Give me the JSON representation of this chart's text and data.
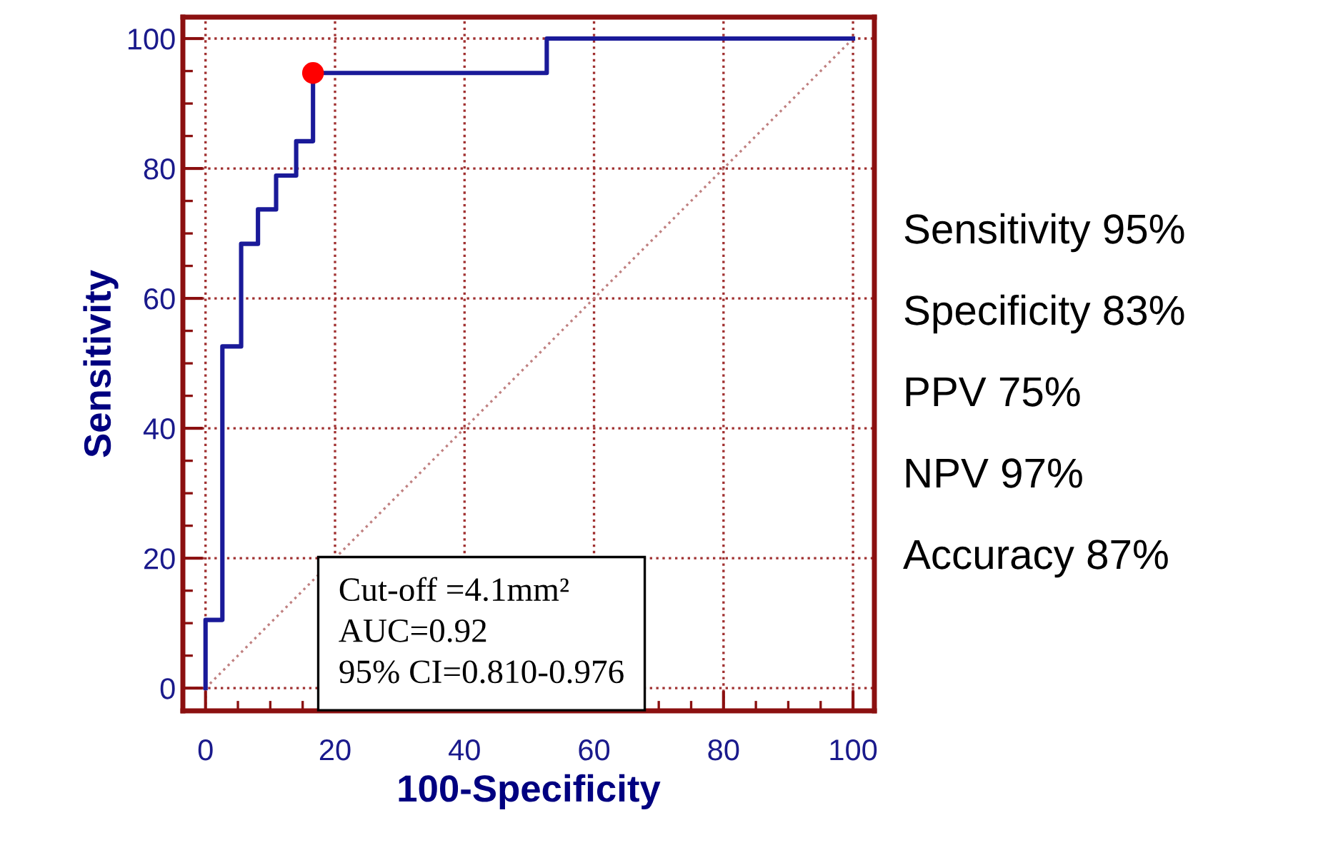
{
  "chart_data": {
    "type": "step",
    "xlabel": "100-Specificity",
    "ylabel": "Sensitivity",
    "xlim": [
      -3.5,
      103.3
    ],
    "ylim": [
      -3.5,
      103.3
    ],
    "xticks": [
      0,
      20,
      40,
      60,
      80,
      100
    ],
    "yticks": [
      0,
      20,
      40,
      60,
      80,
      100
    ],
    "grid": true,
    "legend": false,
    "series": [
      {
        "type": "line",
        "color": "#c08080",
        "line_style": "dotted",
        "x": [
          0,
          100
        ],
        "values": [
          0,
          100
        ]
      },
      {
        "color": "#1a1a99",
        "line_style": "solid",
        "x": [
          0,
          0,
          2.6,
          2.6,
          5.5,
          5.5,
          8.1,
          8.1,
          10.9,
          10.9,
          14.0,
          14.0,
          16.6,
          16.6,
          52.7,
          52.7,
          100
        ],
        "values": [
          0,
          10.5,
          10.5,
          52.6,
          52.6,
          68.4,
          68.4,
          73.7,
          73.7,
          78.9,
          78.9,
          84.2,
          84.2,
          94.7,
          94.7,
          100,
          100
        ]
      },
      {
        "type": "scatter",
        "color": "#ff0000",
        "marker": "circle",
        "x": [
          16.6
        ],
        "values": [
          94.7
        ]
      }
    ],
    "annotations": [
      "Cut-off =4.1mm²",
      "AUC=0.92",
      "95% CI=0.810-0.976",
      "Sensitivity 95%",
      "Specificity 83%",
      "PPV 75%",
      "NPV 97%",
      "Accuracy 87%"
    ]
  }
}
